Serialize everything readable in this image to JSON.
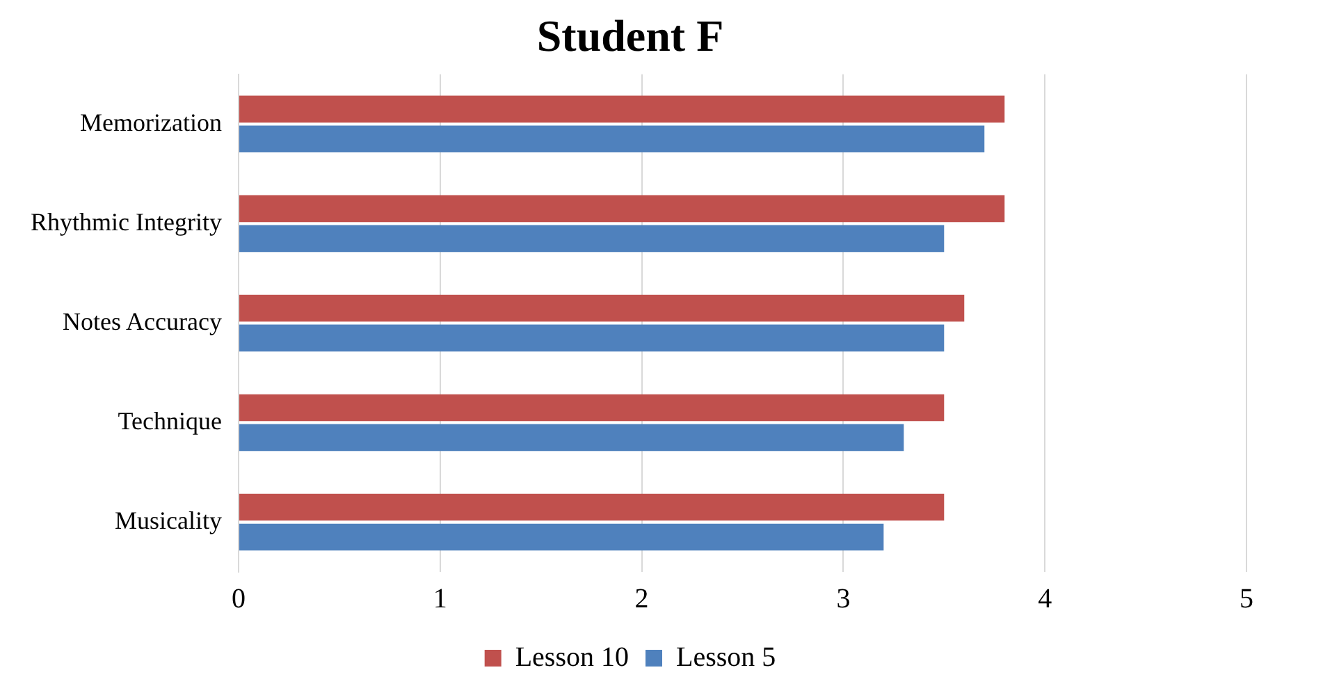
{
  "chart_data": {
    "type": "bar",
    "orientation": "horizontal",
    "title": "Student F",
    "categories": [
      "Memorization",
      "Rhythmic Integrity",
      "Notes Accuracy",
      "Technique",
      "Musicality"
    ],
    "series": [
      {
        "name": "Lesson 10",
        "color": "#c0504d",
        "values": [
          3.8,
          3.8,
          3.6,
          3.5,
          3.5
        ]
      },
      {
        "name": "Lesson 5",
        "color": "#4f81bd",
        "values": [
          3.7,
          3.5,
          3.5,
          3.3,
          3.2
        ]
      }
    ],
    "xlim": [
      0,
      5
    ],
    "xticks": [
      0,
      1,
      2,
      3,
      4,
      5
    ],
    "grid": "x",
    "legend": "bottom"
  }
}
